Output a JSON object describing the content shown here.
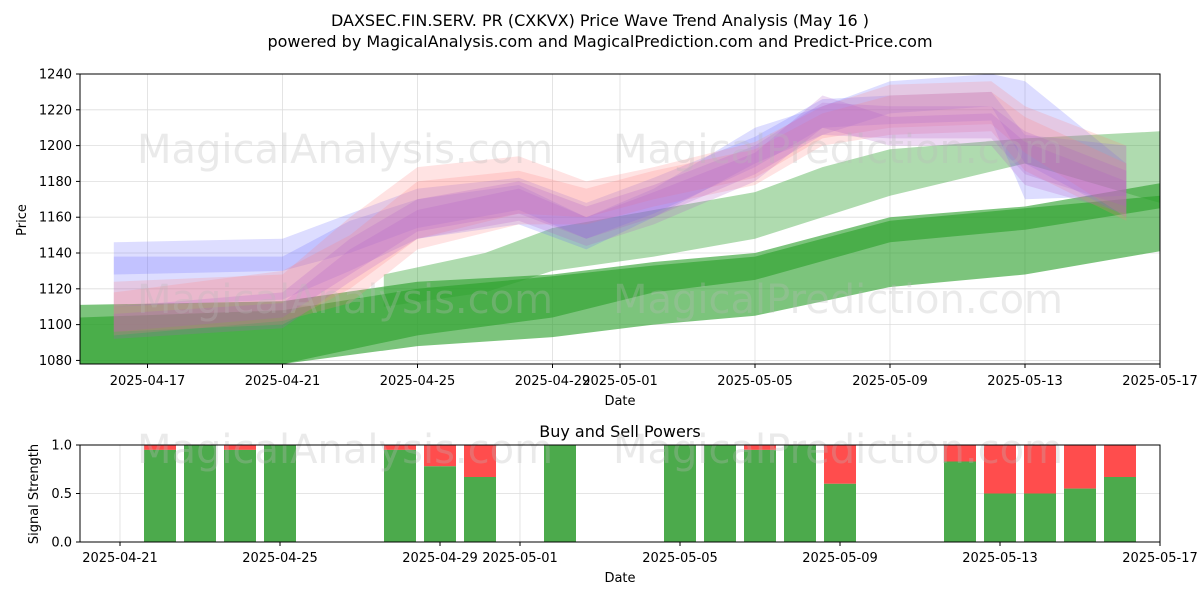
{
  "figure": {
    "title": "DAXSEC.FIN.SERV. PR (CXKVX) Price Wave Trend Analysis (May 16 )",
    "subtitle": "powered by MagicalAnalysis.com and MagicalPrediction.com and Predict-Price.com",
    "watermark_left": "MagicalAnalysis.com",
    "watermark_right": "MagicalPrediction.com"
  },
  "chart_data": [
    {
      "type": "area",
      "xlabel": "Date",
      "ylabel": "Price",
      "ylim": [
        1078,
        1240
      ],
      "y_ticks": [
        1080,
        1100,
        1120,
        1140,
        1160,
        1180,
        1200,
        1220,
        1240
      ],
      "x_ticks": [
        "2025-04-17",
        "2025-04-21",
        "2025-04-25",
        "2025-04-29",
        "2025-05-01",
        "2025-05-05",
        "2025-05-09",
        "2025-05-13",
        "2025-05-17"
      ],
      "xlim": [
        "2025-04-15",
        "2025-05-17"
      ],
      "grid": true,
      "colors": {
        "green": "#2ca02c",
        "blue": "#6464ff",
        "red": "#ff8080",
        "purple": "#b05ac8"
      },
      "green_bands": [
        {
          "x": [
            "2025-04-15",
            "2025-04-21",
            "2025-04-25",
            "2025-04-29",
            "2025-05-02",
            "2025-05-05",
            "2025-05-09",
            "2025-05-13",
            "2025-05-17"
          ],
          "upper": [
            1111,
            1113,
            1124,
            1128,
            1135,
            1140,
            1160,
            1166,
            1179
          ],
          "lower": [
            1078,
            1078,
            1088,
            1093,
            1100,
            1105,
            1121,
            1128,
            1141
          ]
        },
        {
          "x": [
            "2025-04-15",
            "2025-04-21",
            "2025-04-25",
            "2025-04-29",
            "2025-05-02",
            "2025-05-05",
            "2025-05-09",
            "2025-05-13",
            "2025-05-17"
          ],
          "upper": [
            1104,
            1108,
            1120,
            1127,
            1133,
            1138,
            1158,
            1165,
            1172
          ],
          "lower": [
            1078,
            1078,
            1094,
            1104,
            1118,
            1125,
            1146,
            1153,
            1165
          ]
        },
        {
          "x": [
            "2025-04-24",
            "2025-04-27",
            "2025-04-29",
            "2025-05-02",
            "2025-05-05",
            "2025-05-07",
            "2025-05-09",
            "2025-05-13",
            "2025-05-17"
          ],
          "upper": [
            1128,
            1140,
            1154,
            1164,
            1174,
            1188,
            1198,
            1204,
            1208
          ],
          "lower": [
            1110,
            1118,
            1130,
            1138,
            1148,
            1160,
            1172,
            1190,
            1168
          ]
        }
      ],
      "wave_bands": [
        {
          "color": "blue",
          "x": [
            "2025-04-16",
            "2025-04-21",
            "2025-04-23",
            "2025-04-25",
            "2025-04-28",
            "2025-04-30",
            "2025-05-02",
            "2025-05-05",
            "2025-05-07",
            "2025-05-09",
            "2025-05-12",
            "2025-05-13",
            "2025-05-16"
          ],
          "upper": [
            1146,
            1148,
            1162,
            1176,
            1182,
            1168,
            1182,
            1205,
            1226,
            1228,
            1230,
            1206,
            1200
          ],
          "lower": [
            1128,
            1130,
            1140,
            1154,
            1164,
            1148,
            1162,
            1188,
            1210,
            1212,
            1214,
            1170,
            1172
          ]
        },
        {
          "color": "blue",
          "x": [
            "2025-04-16",
            "2025-04-21",
            "2025-04-23",
            "2025-04-25",
            "2025-04-28",
            "2025-04-30",
            "2025-05-02",
            "2025-05-05",
            "2025-05-07",
            "2025-05-09",
            "2025-05-12",
            "2025-05-13",
            "2025-05-16"
          ],
          "upper": [
            1138,
            1138,
            1158,
            1170,
            1178,
            1160,
            1176,
            1210,
            1222,
            1236,
            1240,
            1236,
            1190
          ],
          "lower": [
            1110,
            1114,
            1130,
            1148,
            1156,
            1142,
            1160,
            1190,
            1206,
            1218,
            1222,
            1190,
            1160
          ]
        },
        {
          "color": "red",
          "x": [
            "2025-04-16",
            "2025-04-21",
            "2025-04-23",
            "2025-04-25",
            "2025-04-28",
            "2025-04-30",
            "2025-05-02",
            "2025-05-05",
            "2025-05-07",
            "2025-05-09",
            "2025-05-12",
            "2025-05-13",
            "2025-05-16"
          ],
          "upper": [
            1124,
            1128,
            1160,
            1188,
            1194,
            1180,
            1188,
            1202,
            1222,
            1234,
            1236,
            1222,
            1200
          ],
          "lower": [
            1096,
            1100,
            1120,
            1148,
            1162,
            1160,
            1170,
            1182,
            1204,
            1210,
            1212,
            1196,
            1160
          ]
        },
        {
          "color": "red",
          "x": [
            "2025-04-16",
            "2025-04-21",
            "2025-04-23",
            "2025-04-25",
            "2025-04-28",
            "2025-04-30",
            "2025-05-02",
            "2025-05-05",
            "2025-05-07",
            "2025-05-09",
            "2025-05-12",
            "2025-05-13",
            "2025-05-16"
          ],
          "upper": [
            1118,
            1130,
            1150,
            1180,
            1186,
            1176,
            1186,
            1198,
            1218,
            1228,
            1230,
            1216,
            1190
          ],
          "lower": [
            1094,
            1102,
            1112,
            1142,
            1156,
            1156,
            1166,
            1178,
            1200,
            1206,
            1208,
            1186,
            1158
          ]
        },
        {
          "color": "purple",
          "x": [
            "2025-04-16",
            "2025-04-21",
            "2025-04-23",
            "2025-04-25",
            "2025-04-28",
            "2025-04-30",
            "2025-05-02",
            "2025-05-05",
            "2025-05-07",
            "2025-05-09",
            "2025-05-12",
            "2025-05-13",
            "2025-05-16"
          ],
          "upper": [
            1110,
            1118,
            1148,
            1170,
            1180,
            1166,
            1178,
            1200,
            1224,
            1222,
            1222,
            1208,
            1186
          ],
          "lower": [
            1096,
            1104,
            1128,
            1152,
            1162,
            1148,
            1160,
            1184,
            1206,
            1204,
            1204,
            1184,
            1166
          ]
        },
        {
          "color": "purple",
          "x": [
            "2025-04-16",
            "2025-04-21",
            "2025-04-23",
            "2025-04-25",
            "2025-04-28",
            "2025-04-30",
            "2025-05-02",
            "2025-05-05",
            "2025-05-07",
            "2025-05-09",
            "2025-05-12",
            "2025-05-13",
            "2025-05-16"
          ],
          "upper": [
            1106,
            1112,
            1142,
            1164,
            1176,
            1160,
            1174,
            1196,
            1228,
            1216,
            1218,
            1202,
            1180
          ],
          "lower": [
            1092,
            1098,
            1124,
            1148,
            1158,
            1144,
            1156,
            1180,
            1210,
            1200,
            1200,
            1178,
            1162
          ]
        }
      ]
    },
    {
      "type": "bar",
      "title": "Buy and Sell Powers",
      "xlabel": "Date",
      "ylabel": "Signal Strength",
      "ylim": [
        0,
        1.0
      ],
      "y_ticks": [
        "0.0",
        "0.5",
        "1.0"
      ],
      "x_ticks": [
        "2025-04-21",
        "2025-04-25",
        "2025-04-29",
        "2025-05-01",
        "2025-05-05",
        "2025-05-09",
        "2025-05-13",
        "2025-05-17"
      ],
      "xlim": [
        "2025-04-20",
        "2025-05-17"
      ],
      "grid": true,
      "colors": {
        "buy": "#4caa4c",
        "sell": "#ff4d4d"
      },
      "bars": [
        {
          "date": "2025-04-22",
          "buy": 0.95
        },
        {
          "date": "2025-04-23",
          "buy": 1.0
        },
        {
          "date": "2025-04-24",
          "buy": 0.95
        },
        {
          "date": "2025-04-25",
          "buy": 1.0
        },
        {
          "date": "2025-04-28",
          "buy": 0.95
        },
        {
          "date": "2025-04-29",
          "buy": 0.78
        },
        {
          "date": "2025-04-30",
          "buy": 0.67
        },
        {
          "date": "2025-05-02",
          "buy": 1.0
        },
        {
          "date": "2025-05-05",
          "buy": 1.0
        },
        {
          "date": "2025-05-06",
          "buy": 1.0
        },
        {
          "date": "2025-05-07",
          "buy": 0.95
        },
        {
          "date": "2025-05-08",
          "buy": 1.0
        },
        {
          "date": "2025-05-09",
          "buy": 0.6
        },
        {
          "date": "2025-05-12",
          "buy": 0.83
        },
        {
          "date": "2025-05-13",
          "buy": 0.5
        },
        {
          "date": "2025-05-14",
          "buy": 0.5
        },
        {
          "date": "2025-05-15",
          "buy": 0.55
        },
        {
          "date": "2025-05-16",
          "buy": 0.67
        }
      ]
    }
  ]
}
